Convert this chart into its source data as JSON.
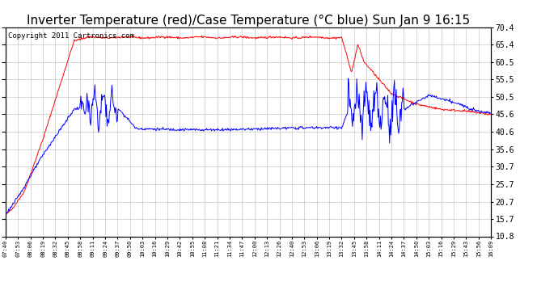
{
  "title": "Inverter Temperature (red)/Case Temperature (°C blue) Sun Jan 9 16:15",
  "copyright": "Copyright 2011 Cartronics.com",
  "ylabel_right_ticks": [
    10.8,
    15.7,
    20.7,
    25.7,
    30.7,
    35.6,
    40.6,
    45.6,
    50.5,
    55.5,
    60.5,
    65.4,
    70.4
  ],
  "xtick_labels": [
    "07:40",
    "07:53",
    "08:06",
    "08:19",
    "08:32",
    "08:45",
    "08:58",
    "09:11",
    "09:24",
    "09:37",
    "09:50",
    "10:03",
    "10:16",
    "10:29",
    "10:42",
    "10:55",
    "11:08",
    "11:21",
    "11:34",
    "11:47",
    "12:00",
    "12:13",
    "12:26",
    "12:40",
    "12:53",
    "13:06",
    "13:19",
    "13:32",
    "13:45",
    "13:58",
    "14:11",
    "14:24",
    "14:37",
    "14:50",
    "15:03",
    "15:16",
    "15:29",
    "15:43",
    "15:56",
    "16:09"
  ],
  "ymin": 10.8,
  "ymax": 70.4,
  "bg_color": "#ffffff",
  "plot_bg_color": "#ffffff",
  "grid_color": "#bbbbbb",
  "red_color": "#ff0000",
  "blue_color": "#0000ff",
  "title_fontsize": 11,
  "copyright_fontsize": 6.5
}
